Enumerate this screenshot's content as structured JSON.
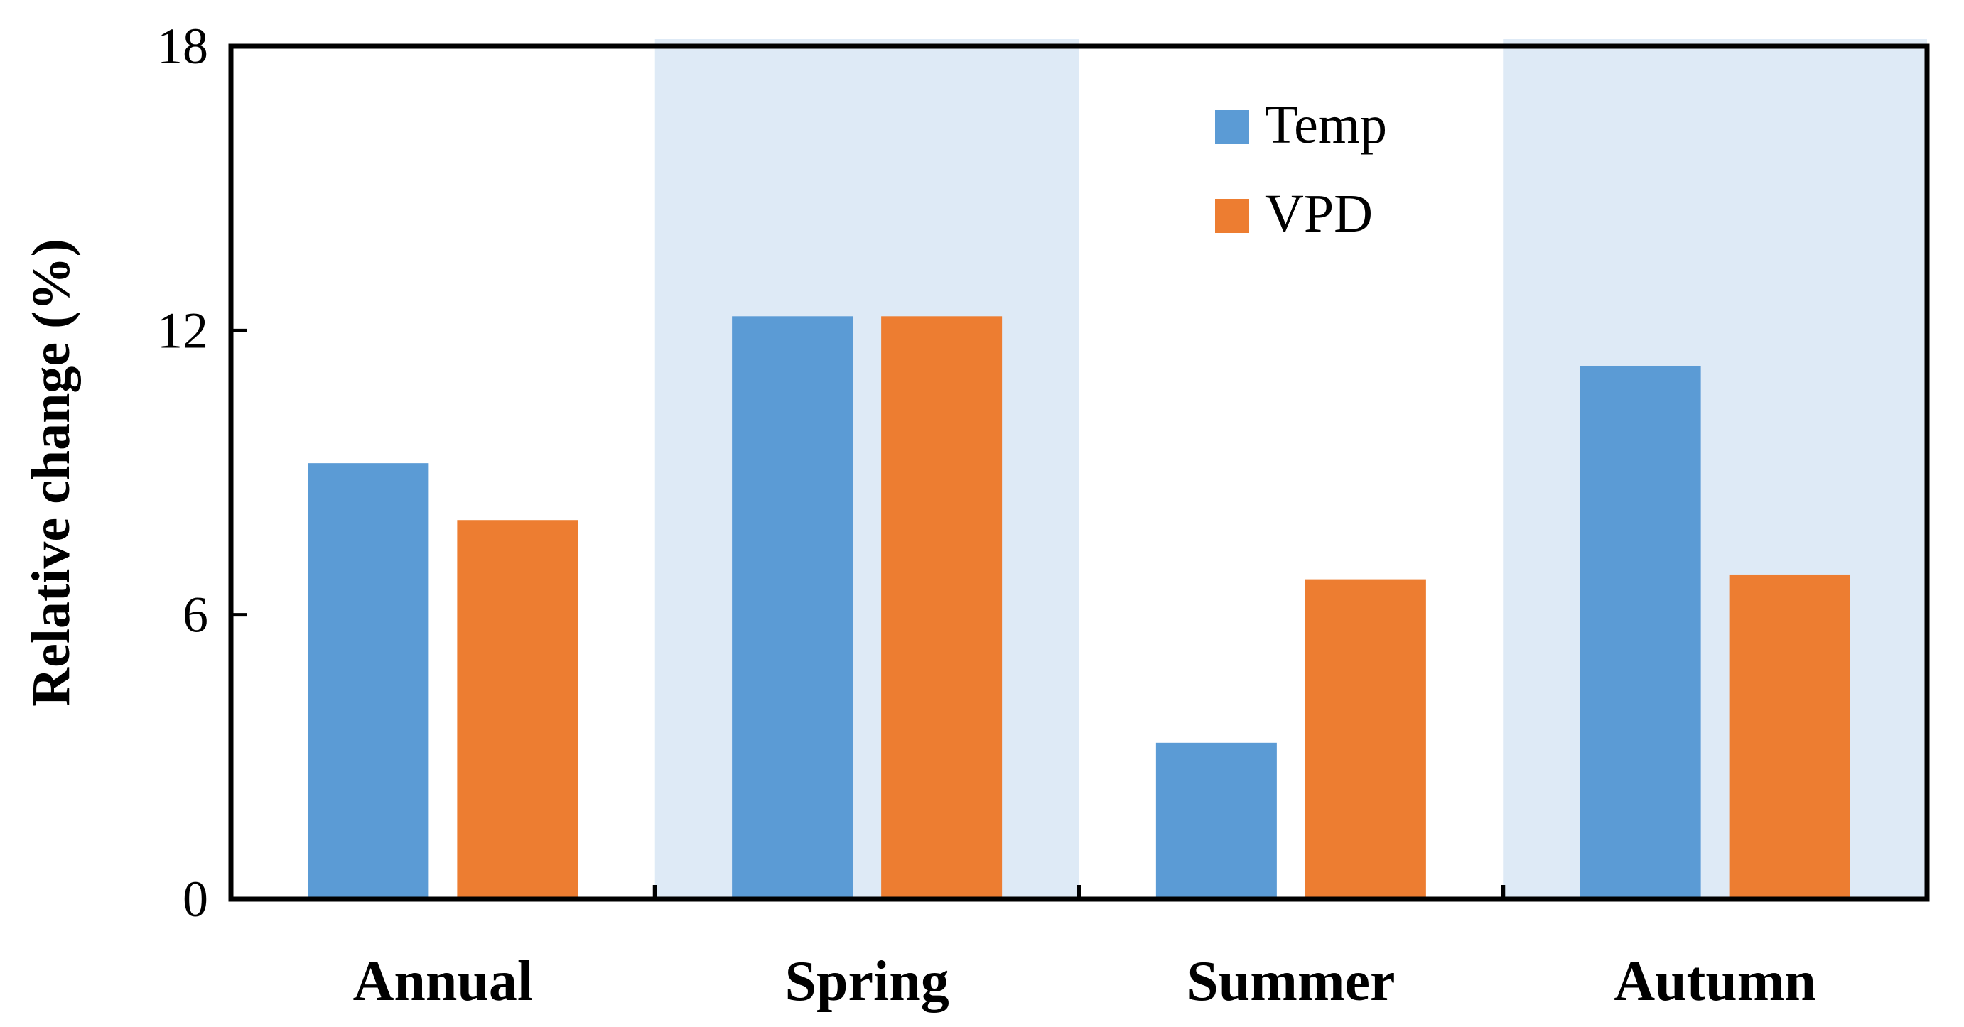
{
  "chart_data": {
    "type": "bar",
    "title": "",
    "xlabel": "",
    "ylabel": "Relative change (%)",
    "ylim": [
      0,
      18
    ],
    "yticks": [
      0,
      6,
      12,
      18
    ],
    "categories": [
      "Annual",
      "Spring",
      "Summer",
      "Autumn"
    ],
    "shaded_categories": [
      "Spring",
      "Autumn"
    ],
    "series": [
      {
        "name": "Temp",
        "color": "#5B9BD5",
        "values": [
          9.2,
          12.3,
          3.3,
          11.25
        ]
      },
      {
        "name": "VPD",
        "color": "#ED7D31",
        "values": [
          8.0,
          12.3,
          6.75,
          6.85
        ]
      }
    ],
    "legend_position": "top-center",
    "grid": false,
    "shade_color": "#DEEAF6"
  }
}
